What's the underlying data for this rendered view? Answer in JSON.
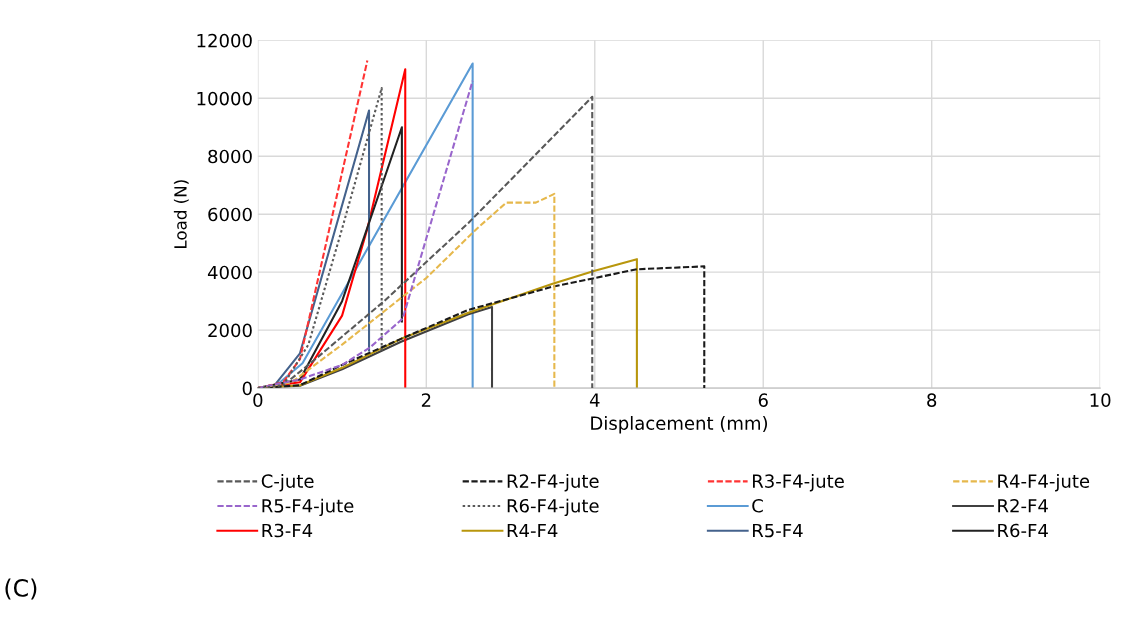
{
  "chart_data": {
    "type": "line",
    "xlabel": "Displacement (mm)",
    "ylabel": "Load (N)",
    "xlim": [
      0,
      10
    ],
    "ylim": [
      0,
      12000
    ],
    "xticks": [
      0,
      2,
      4,
      6,
      8,
      10
    ],
    "yticks": [
      0,
      2000,
      4000,
      6000,
      8000,
      10000,
      12000
    ],
    "grid": true,
    "legend": "bottom",
    "marker": "none",
    "annotations": [
      "(C)"
    ],
    "series": [
      {
        "name": "C-jute",
        "color": "#595959",
        "line_style": "dashed",
        "x": [
          0,
          0.3,
          0.6,
          1.5,
          2.5,
          3.97,
          3.97
        ],
        "values": [
          0,
          100,
          800,
          3000,
          5700,
          10050,
          0
        ]
      },
      {
        "name": "R2-F4-jute",
        "color": "#1a1a1a",
        "line_style": "dashed",
        "x": [
          0,
          0.5,
          1,
          1.7,
          2.5,
          3.5,
          4.5,
          5.3,
          5.3
        ],
        "values": [
          0,
          100,
          800,
          1700,
          2700,
          3500,
          4100,
          4200,
          0
        ]
      },
      {
        "name": "R3-F4-jute",
        "color": "#ff3333",
        "line_style": "dashed",
        "x": [
          0,
          0.3,
          0.5,
          1.3
        ],
        "values": [
          0,
          200,
          1000,
          11300
        ]
      },
      {
        "name": "R4-F4-jute",
        "color": "#e6b84c",
        "line_style": "dashed",
        "x": [
          0,
          0.4,
          1,
          2,
          2.6,
          2.95,
          3.3,
          3.52,
          3.52
        ],
        "values": [
          0,
          200,
          1500,
          3800,
          5500,
          6400,
          6400,
          6700,
          0
        ]
      },
      {
        "name": "R5-F4-jute",
        "color": "#9966cc",
        "line_style": "dashed",
        "x": [
          0,
          0.5,
          1,
          1.33,
          1.72,
          2.55
        ],
        "values": [
          0,
          300,
          800,
          1400,
          2400,
          10600
        ]
      },
      {
        "name": "R6-F4-jute",
        "color": "#595959",
        "line_style": "dotted",
        "x": [
          0,
          0.3,
          0.6,
          1,
          1.47,
          1.47
        ],
        "values": [
          0,
          100,
          1500,
          5500,
          10350,
          1300
        ]
      },
      {
        "name": "C",
        "color": "#5b9bd5",
        "line_style": "solid",
        "x": [
          0,
          0.2,
          0.53,
          2.55,
          2.55
        ],
        "values": [
          0,
          50,
          860,
          11200,
          0
        ]
      },
      {
        "name": "R2-F4",
        "color": "#404040",
        "line_style": "solid",
        "x": [
          0,
          0.5,
          1,
          1.7,
          2.5,
          2.78,
          2.78
        ],
        "values": [
          0,
          80,
          650,
          1600,
          2550,
          2800,
          0
        ]
      },
      {
        "name": "R3-F4",
        "color": "#ff0000",
        "line_style": "solid",
        "x": [
          0,
          0.5,
          1,
          1.3,
          1.75,
          1.75
        ],
        "values": [
          0,
          200,
          2500,
          5500,
          11000,
          0
        ]
      },
      {
        "name": "R4-F4",
        "color": "#b8960c",
        "line_style": "solid",
        "x": [
          0,
          0.5,
          1,
          1.7,
          2.5,
          3,
          3.5,
          4,
          4.5,
          4.5
        ],
        "values": [
          0,
          100,
          700,
          1700,
          2600,
          3100,
          3600,
          4050,
          4450,
          0
        ]
      },
      {
        "name": "R5-F4",
        "color": "#44628c",
        "line_style": "solid",
        "x": [
          0,
          0.2,
          0.5,
          1.32,
          1.32
        ],
        "values": [
          0,
          100,
          1200,
          9580,
          1300
        ]
      },
      {
        "name": "R6-F4",
        "color": "#222222",
        "line_style": "solid",
        "x": [
          0,
          0.5,
          1,
          1.71,
          1.71
        ],
        "values": [
          0,
          300,
          3000,
          9000,
          2300
        ]
      }
    ]
  }
}
